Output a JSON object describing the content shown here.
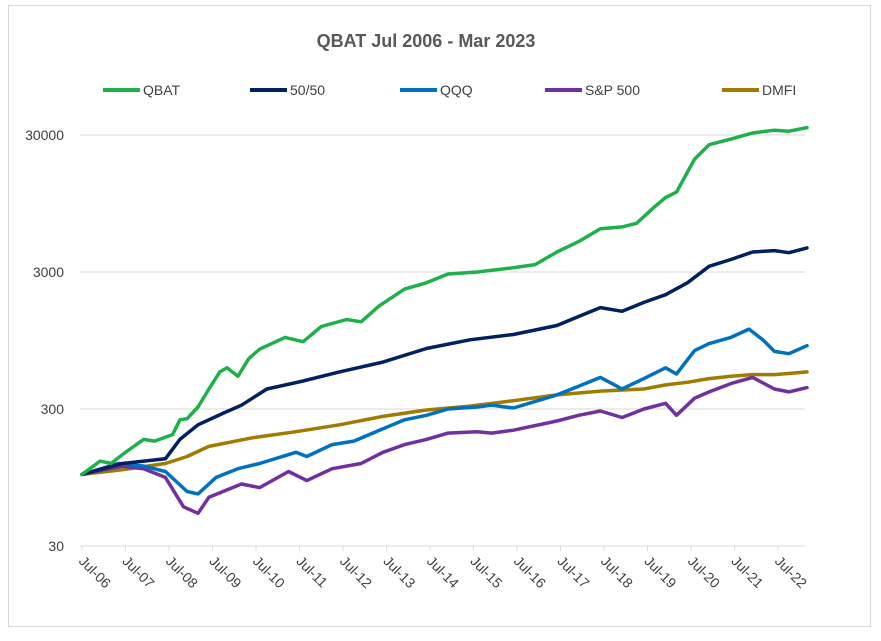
{
  "chart_data": {
    "type": "line",
    "title": "QBAT  Jul 2006 - Mar 2023",
    "xlabel": "",
    "ylabel": "",
    "y_scale": "log",
    "ylim": [
      30,
      45000
    ],
    "yticks": [
      30,
      300,
      3000,
      30000
    ],
    "ytick_labels": [
      "30",
      "300",
      "3000",
      "30000"
    ],
    "xtick_labels": [
      "Jul-06",
      "Jul-07",
      "Jul-08",
      "Jul-09",
      "Jul-10",
      "Jul-11",
      "Jul-12",
      "Jul-13",
      "Jul-14",
      "Jul-15",
      "Jul-16",
      "Jul-17",
      "Jul-18",
      "Jul-19",
      "Jul-20",
      "Jul-21",
      "Jul-22"
    ],
    "x_range": [
      "2006-07",
      "2023-03"
    ],
    "grid": "horizontal",
    "legend_position": "top",
    "series": [
      {
        "name": "QBAT",
        "color": "#1fb04b",
        "points": [
          [
            "2006-07",
            100
          ],
          [
            "2006-12",
            125
          ],
          [
            "2007-03",
            120
          ],
          [
            "2007-07",
            145
          ],
          [
            "2007-12",
            180
          ],
          [
            "2008-03",
            175
          ],
          [
            "2008-08",
            195
          ],
          [
            "2008-10",
            250
          ],
          [
            "2008-12",
            255
          ],
          [
            "2009-03",
            310
          ],
          [
            "2009-06",
            420
          ],
          [
            "2009-09",
            560
          ],
          [
            "2009-11",
            600
          ],
          [
            "2010-02",
            520
          ],
          [
            "2010-05",
            700
          ],
          [
            "2010-08",
            820
          ],
          [
            "2011-03",
            1000
          ],
          [
            "2011-08",
            930
          ],
          [
            "2012-01",
            1200
          ],
          [
            "2012-08",
            1350
          ],
          [
            "2012-12",
            1300
          ],
          [
            "2013-05",
            1700
          ],
          [
            "2013-12",
            2250
          ],
          [
            "2014-06",
            2500
          ],
          [
            "2014-12",
            2900
          ],
          [
            "2015-08",
            3000
          ],
          [
            "2016-05",
            3200
          ],
          [
            "2016-12",
            3400
          ],
          [
            "2017-06",
            4200
          ],
          [
            "2017-12",
            5000
          ],
          [
            "2018-06",
            6200
          ],
          [
            "2018-12",
            6400
          ],
          [
            "2019-04",
            6800
          ],
          [
            "2019-09",
            9000
          ],
          [
            "2019-12",
            10500
          ],
          [
            "2020-03",
            11500
          ],
          [
            "2020-08",
            20000
          ],
          [
            "2020-12",
            25500
          ],
          [
            "2021-06",
            28000
          ],
          [
            "2021-12",
            31000
          ],
          [
            "2022-06",
            32500
          ],
          [
            "2022-10",
            32000
          ],
          [
            "2023-03",
            34000
          ]
        ]
      },
      {
        "name": "50/50",
        "color": "#002060",
        "points": [
          [
            "2006-07",
            100
          ],
          [
            "2007-06",
            120
          ],
          [
            "2008-06",
            130
          ],
          [
            "2008-10",
            180
          ],
          [
            "2009-03",
            230
          ],
          [
            "2009-10",
            280
          ],
          [
            "2010-03",
            320
          ],
          [
            "2010-10",
            420
          ],
          [
            "2011-08",
            480
          ],
          [
            "2012-06",
            560
          ],
          [
            "2013-06",
            660
          ],
          [
            "2014-06",
            830
          ],
          [
            "2015-06",
            960
          ],
          [
            "2016-06",
            1050
          ],
          [
            "2017-06",
            1220
          ],
          [
            "2017-12",
            1420
          ],
          [
            "2018-06",
            1650
          ],
          [
            "2018-12",
            1550
          ],
          [
            "2019-06",
            1800
          ],
          [
            "2019-12",
            2050
          ],
          [
            "2020-06",
            2500
          ],
          [
            "2020-12",
            3300
          ],
          [
            "2021-06",
            3700
          ],
          [
            "2021-12",
            4200
          ],
          [
            "2022-06",
            4300
          ],
          [
            "2022-10",
            4150
          ],
          [
            "2023-03",
            4500
          ]
        ]
      },
      {
        "name": "QQQ",
        "color": "#0070c0",
        "points": [
          [
            "2006-07",
            100
          ],
          [
            "2007-05",
            120
          ],
          [
            "2007-12",
            115
          ],
          [
            "2008-06",
            105
          ],
          [
            "2008-12",
            75
          ],
          [
            "2009-03",
            72
          ],
          [
            "2009-08",
            95
          ],
          [
            "2010-02",
            110
          ],
          [
            "2010-08",
            120
          ],
          [
            "2011-06",
            145
          ],
          [
            "2011-09",
            135
          ],
          [
            "2012-04",
            165
          ],
          [
            "2012-10",
            175
          ],
          [
            "2013-06",
            215
          ],
          [
            "2013-12",
            250
          ],
          [
            "2014-06",
            270
          ],
          [
            "2014-12",
            300
          ],
          [
            "2015-08",
            310
          ],
          [
            "2015-12",
            320
          ],
          [
            "2016-06",
            305
          ],
          [
            "2017-06",
            380
          ],
          [
            "2017-12",
            440
          ],
          [
            "2018-06",
            510
          ],
          [
            "2018-12",
            420
          ],
          [
            "2019-06",
            500
          ],
          [
            "2019-12",
            600
          ],
          [
            "2020-03",
            540
          ],
          [
            "2020-08",
            800
          ],
          [
            "2020-12",
            900
          ],
          [
            "2021-06",
            1000
          ],
          [
            "2021-11",
            1150
          ],
          [
            "2022-03",
            950
          ],
          [
            "2022-06",
            790
          ],
          [
            "2022-10",
            760
          ],
          [
            "2023-03",
            870
          ]
        ]
      },
      {
        "name": "S&P 500",
        "color": "#7030a0",
        "points": [
          [
            "2006-07",
            100
          ],
          [
            "2007-06",
            115
          ],
          [
            "2007-12",
            110
          ],
          [
            "2008-06",
            95
          ],
          [
            "2008-11",
            58
          ],
          [
            "2009-03",
            52
          ],
          [
            "2009-06",
            68
          ],
          [
            "2010-03",
            85
          ],
          [
            "2010-08",
            80
          ],
          [
            "2011-04",
            105
          ],
          [
            "2011-09",
            90
          ],
          [
            "2012-04",
            110
          ],
          [
            "2012-12",
            120
          ],
          [
            "2013-06",
            145
          ],
          [
            "2013-12",
            165
          ],
          [
            "2014-06",
            180
          ],
          [
            "2014-12",
            200
          ],
          [
            "2015-08",
            205
          ],
          [
            "2015-12",
            200
          ],
          [
            "2016-06",
            210
          ],
          [
            "2017-06",
            245
          ],
          [
            "2017-12",
            270
          ],
          [
            "2018-06",
            290
          ],
          [
            "2018-12",
            260
          ],
          [
            "2019-06",
            300
          ],
          [
            "2019-12",
            330
          ],
          [
            "2020-03",
            270
          ],
          [
            "2020-08",
            360
          ],
          [
            "2020-12",
            400
          ],
          [
            "2021-06",
            460
          ],
          [
            "2021-12",
            510
          ],
          [
            "2022-06",
            420
          ],
          [
            "2022-10",
            400
          ],
          [
            "2023-03",
            430
          ]
        ]
      },
      {
        "name": "DMFI",
        "color": "#a07b00",
        "points": [
          [
            "2006-07",
            100
          ],
          [
            "2007-06",
            108
          ],
          [
            "2008-06",
            120
          ],
          [
            "2008-12",
            135
          ],
          [
            "2009-06",
            160
          ],
          [
            "2010-06",
            185
          ],
          [
            "2011-06",
            205
          ],
          [
            "2012-06",
            230
          ],
          [
            "2013-06",
            265
          ],
          [
            "2014-06",
            295
          ],
          [
            "2015-06",
            315
          ],
          [
            "2016-06",
            345
          ],
          [
            "2017-06",
            380
          ],
          [
            "2018-06",
            405
          ],
          [
            "2019-06",
            420
          ],
          [
            "2019-12",
            450
          ],
          [
            "2020-06",
            470
          ],
          [
            "2020-12",
            500
          ],
          [
            "2021-06",
            520
          ],
          [
            "2021-12",
            535
          ],
          [
            "2022-06",
            535
          ],
          [
            "2022-12",
            550
          ],
          [
            "2023-03",
            560
          ]
        ]
      }
    ]
  }
}
